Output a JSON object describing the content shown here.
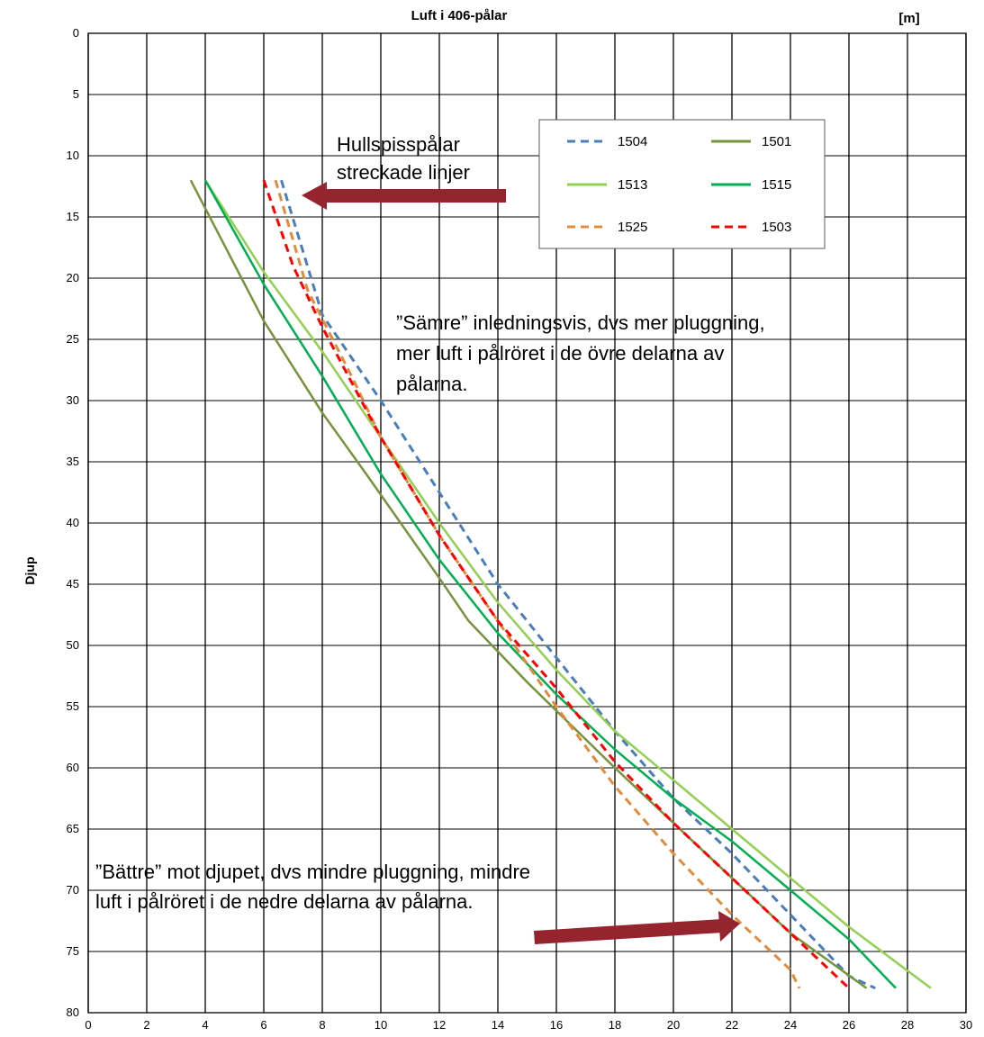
{
  "chart_data": {
    "type": "line",
    "title": "Luft i 406-pålar",
    "unit_label": "[m]",
    "ylabel": "Djup",
    "xlabel": "",
    "xlim": [
      0,
      30
    ],
    "ylim": [
      0,
      80
    ],
    "y_inverted": true,
    "grid": true,
    "legend_position": "top-right",
    "x_ticks": [
      "0",
      "2",
      "4",
      "6",
      "8",
      "10",
      "12",
      "14",
      "16",
      "18",
      "20",
      "22",
      "24",
      "26",
      "28",
      "30"
    ],
    "y_ticks": [
      "0",
      "5",
      "10",
      "15",
      "20",
      "25",
      "30",
      "35",
      "40",
      "45",
      "50",
      "55",
      "60",
      "65",
      "70",
      "75",
      "80"
    ],
    "series": [
      {
        "name": "1504",
        "color": "#4a7ebb",
        "dash": true,
        "points": [
          [
            6.6,
            12
          ],
          [
            8,
            23
          ],
          [
            10,
            30
          ],
          [
            12,
            37.5
          ],
          [
            14,
            45
          ],
          [
            16,
            51
          ],
          [
            18,
            57
          ],
          [
            20,
            62.5
          ],
          [
            22,
            67
          ],
          [
            24,
            72
          ],
          [
            26,
            77
          ],
          [
            26.9,
            78
          ]
        ]
      },
      {
        "name": "1501",
        "color": "#77933c",
        "dash": false,
        "points": [
          [
            3.5,
            12
          ],
          [
            6,
            23.5
          ],
          [
            8,
            31
          ],
          [
            9.5,
            36
          ],
          [
            12,
            44.5
          ],
          [
            13,
            48
          ],
          [
            15,
            53
          ],
          [
            18,
            60
          ],
          [
            20,
            64.5
          ],
          [
            22,
            69
          ],
          [
            24,
            73.5
          ],
          [
            26.6,
            78
          ]
        ]
      },
      {
        "name": "1513",
        "color": "#92d050",
        "dash": false,
        "points": [
          [
            4,
            12
          ],
          [
            6,
            19.5
          ],
          [
            8,
            26
          ],
          [
            10,
            33
          ],
          [
            12,
            40
          ],
          [
            14,
            46.5
          ],
          [
            16,
            52
          ],
          [
            18,
            57
          ],
          [
            20,
            61
          ],
          [
            22,
            65
          ],
          [
            24,
            69
          ],
          [
            26,
            73
          ],
          [
            28.8,
            78
          ]
        ]
      },
      {
        "name": "1515",
        "color": "#00b050",
        "dash": false,
        "points": [
          [
            4,
            12
          ],
          [
            6,
            20.5
          ],
          [
            8,
            28
          ],
          [
            10,
            36
          ],
          [
            12,
            43
          ],
          [
            14,
            49
          ],
          [
            16,
            54
          ],
          [
            18,
            58.5
          ],
          [
            20,
            62.5
          ],
          [
            22,
            66
          ],
          [
            24,
            70
          ],
          [
            26,
            74
          ],
          [
            27.6,
            78
          ]
        ]
      },
      {
        "name": "1525",
        "color": "#e08c3c",
        "dash": true,
        "points": [
          [
            6.4,
            12
          ],
          [
            7.5,
            21
          ],
          [
            9,
            28
          ],
          [
            10,
            33
          ],
          [
            12,
            41
          ],
          [
            14,
            48
          ],
          [
            16,
            55
          ],
          [
            18,
            61.5
          ],
          [
            20,
            67
          ],
          [
            22,
            72
          ],
          [
            24,
            76.5
          ],
          [
            24.3,
            78
          ]
        ]
      },
      {
        "name": "1503",
        "color": "#ff0000",
        "dash": true,
        "points": [
          [
            6,
            12
          ],
          [
            7,
            19
          ],
          [
            8,
            24
          ],
          [
            10,
            33
          ],
          [
            12,
            41
          ],
          [
            14,
            48
          ],
          [
            16,
            53.5
          ],
          [
            18,
            59.5
          ],
          [
            20,
            64.5
          ],
          [
            22,
            69
          ],
          [
            24,
            73.5
          ],
          [
            26,
            78
          ]
        ]
      }
    ],
    "legend_order": [
      0,
      1,
      2,
      3,
      4,
      5
    ],
    "annotations": {
      "hullspiss_line1": "Hullspisspålar",
      "hullspiss_line2": "streckade linjer",
      "samre_line1": "”Sämre” inledningsvis, dvs mer pluggning,",
      "samre_line2": "mer luft i pålröret i de övre delarna av",
      "samre_line3": "pålarna.",
      "battre_line1": "”Bättre” mot djupet, dvs mindre pluggning, mindre",
      "battre_line2": "luft i pålröret i de nedre delarna av pålarna."
    },
    "arrow_color": "#96242f"
  }
}
